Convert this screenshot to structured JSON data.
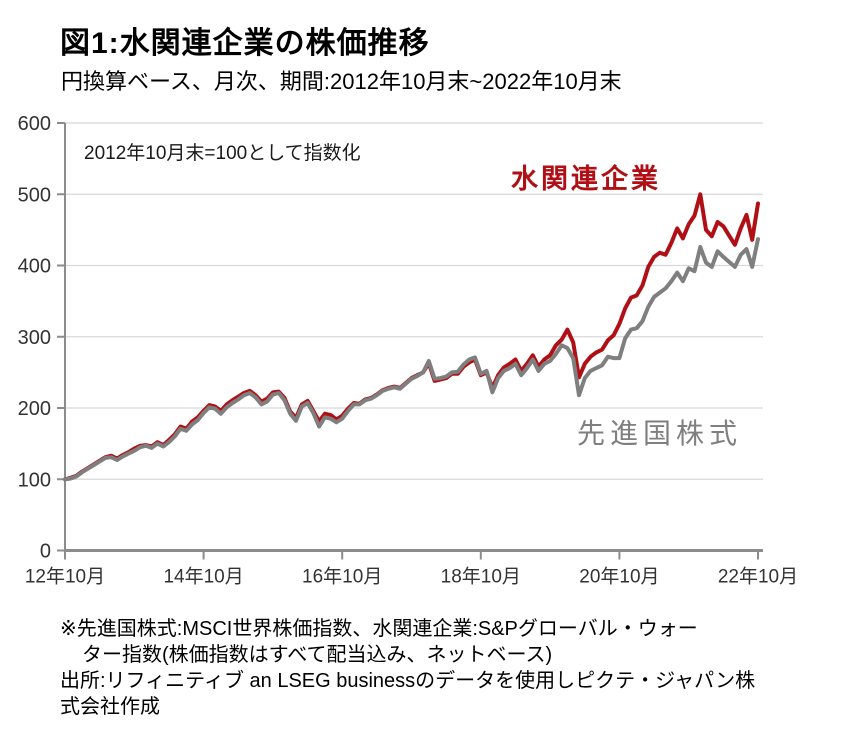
{
  "header": {
    "title": "図1:水関連企業の株価推移",
    "subtitle": "円換算ベース、月次、期間:2012年10月末~2022年10月末"
  },
  "chart": {
    "note": "2012年10月末=100として指数化"
  },
  "footnote": {
    "lines": [
      "※先進国株式:MSCI世界株価指数、水関連企業:S&Pグローバル・ウォー",
      "ター指数(株価指数はすべて配当込み、ネットベース)",
      "出所:リフィニティブ an LSEG businessのデータを使用しピクテ・ジャパン株",
      "式会社作成"
    ]
  },
  "colors": {
    "water_red": "#B01015",
    "world_gray": "#7F7F7F",
    "gridline": "#D8D8D8",
    "axis": "#8C8C8C",
    "tick_text": "#333333"
  },
  "chart_data": {
    "type": "line",
    "title": "図1:水関連企業の株価推移",
    "subtitle": "円換算ベース、月次、期間:2012年10月末~2022年10月末",
    "annotation": "2012年10月末=100として指数化",
    "x_unit": "month",
    "x_start": "2012-10",
    "x_end": "2022-10",
    "n_points": 121,
    "ylim": [
      0,
      600
    ],
    "grid": "horizontal",
    "legend_position": "inline-labels",
    "ytick_values": [
      0,
      100,
      200,
      300,
      400,
      500,
      600
    ],
    "ytick_labels": [
      "0",
      "100",
      "200",
      "300",
      "400",
      "500",
      "600"
    ],
    "xtick_months": [
      0,
      24,
      48,
      72,
      96,
      120
    ],
    "xtick_labels": [
      "12年10月",
      "14年10月",
      "16年10月",
      "18年10月",
      "20年10月",
      "22年10月"
    ],
    "series": [
      {
        "name": "水関連企業",
        "color": "#B01015",
        "values": [
          100,
          102,
          105,
          111,
          116,
          121,
          126,
          131,
          133,
          129,
          134,
          138,
          143,
          147,
          148,
          146,
          152,
          148,
          155,
          163,
          174,
          171,
          181,
          187,
          196,
          204,
          202,
          196,
          205,
          211,
          216,
          221,
          224,
          218,
          209,
          213,
          222,
          223,
          214,
          195,
          186,
          205,
          210,
          196,
          181,
          192,
          190,
          184,
          189,
          199,
          207,
          206,
          212,
          214,
          219,
          225,
          228,
          230,
          228,
          235,
          242,
          246,
          250,
          263,
          238,
          240,
          242,
          248,
          248,
          258,
          264,
          268,
          246,
          250,
          228,
          246,
          257,
          262,
          268,
          252,
          262,
          274,
          258,
          268,
          274,
          288,
          296,
          310,
          292,
          243,
          262,
          272,
          278,
          282,
          295,
          302,
          318,
          340,
          355,
          358,
          372,
          398,
          412,
          418,
          415,
          432,
          452,
          438,
          458,
          470,
          500,
          450,
          441,
          461,
          455,
          442,
          429,
          452,
          471,
          436,
          487
        ]
      },
      {
        "name": "先進国株式",
        "color": "#7F7F7F",
        "values": [
          100,
          101,
          104,
          110,
          115,
          120,
          125,
          130,
          131,
          127,
          132,
          136,
          140,
          145,
          147,
          144,
          150,
          146,
          152,
          160,
          171,
          168,
          177,
          183,
          193,
          201,
          199,
          192,
          201,
          207,
          212,
          218,
          221,
          215,
          205,
          209,
          219,
          221,
          211,
          192,
          182,
          202,
          207,
          193,
          174,
          187,
          185,
          180,
          185,
          196,
          205,
          205,
          211,
          213,
          218,
          224,
          227,
          229,
          227,
          234,
          241,
          245,
          250,
          266,
          241,
          242,
          244,
          250,
          251,
          261,
          268,
          271,
          248,
          252,
          222,
          242,
          252,
          256,
          262,
          246,
          256,
          268,
          252,
          262,
          266,
          276,
          288,
          284,
          270,
          218,
          242,
          252,
          256,
          260,
          272,
          270,
          270,
          298,
          310,
          312,
          322,
          342,
          356,
          362,
          368,
          378,
          390,
          378,
          396,
          392,
          426,
          404,
          398,
          420,
          412,
          405,
          398,
          415,
          423,
          398,
          437
        ]
      }
    ]
  }
}
